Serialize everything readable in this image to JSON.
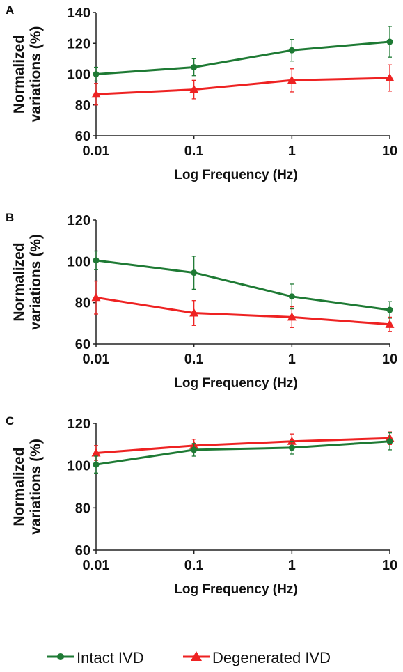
{
  "chart_data": [
    {
      "type": "line",
      "panel_label": "A",
      "x": [
        0.01,
        0.1,
        1,
        10
      ],
      "xticks": [
        "0.01",
        "0.1",
        "1",
        "10"
      ],
      "xscale": "log",
      "xlabel": "Log Frequency (Hz)",
      "ylabel": [
        "Normalized",
        "variations (%)"
      ],
      "ylim": [
        60,
        140
      ],
      "yticks": [
        60,
        80,
        100,
        120,
        140
      ],
      "grid": false,
      "series": [
        {
          "name": "Intact IVD",
          "color": "#1e7a34",
          "marker": "circle",
          "values": [
            100,
            104.5,
            115.5,
            121
          ],
          "errors": [
            4.5,
            5.5,
            7,
            10
          ]
        },
        {
          "name": "Degenerated IVD",
          "color": "#ee2222",
          "marker": "triangle",
          "values": [
            87,
            90,
            96,
            97.5
          ],
          "errors": [
            7,
            6,
            7.5,
            8.5
          ]
        }
      ]
    },
    {
      "type": "line",
      "panel_label": "B",
      "x": [
        0.01,
        0.1,
        1,
        10
      ],
      "xticks": [
        "0.01",
        "0.1",
        "1",
        "10"
      ],
      "xscale": "log",
      "xlabel": "Log Frequency (Hz)",
      "ylabel": [
        "Normalized",
        "variations (%)"
      ],
      "ylim": [
        60,
        120
      ],
      "yticks": [
        60,
        80,
        100,
        120
      ],
      "grid": false,
      "series": [
        {
          "name": "Intact IVD",
          "color": "#1e7a34",
          "marker": "circle",
          "values": [
            100.5,
            94.5,
            83,
            76.5
          ],
          "errors": [
            4.5,
            8,
            6,
            4
          ]
        },
        {
          "name": "Degenerated IVD",
          "color": "#ee2222",
          "marker": "triangle",
          "values": [
            82.5,
            75,
            73,
            69.5
          ],
          "errors": [
            8,
            6,
            5,
            3.5
          ]
        }
      ]
    },
    {
      "type": "line",
      "panel_label": "C",
      "x": [
        0.01,
        0.1,
        1,
        10
      ],
      "xticks": [
        "0.01",
        "0.1",
        "1",
        "10"
      ],
      "xscale": "log",
      "xlabel": "Log Frequency (Hz)",
      "ylabel": [
        "Normalized",
        "variations (%)"
      ],
      "ylim": [
        60,
        120
      ],
      "yticks": [
        60,
        80,
        100,
        120
      ],
      "grid": false,
      "series": [
        {
          "name": "Intact IVD",
          "color": "#1e7a34",
          "marker": "circle",
          "values": [
            100.5,
            107.5,
            108.5,
            111.5
          ],
          "errors": [
            4,
            3,
            3,
            4
          ]
        },
        {
          "name": "Degenerated IVD",
          "color": "#ee2222",
          "marker": "triangle",
          "values": [
            106,
            109.5,
            111.5,
            113
          ],
          "errors": [
            3.5,
            3,
            3.5,
            3
          ]
        }
      ]
    }
  ],
  "legend": {
    "position": "bottom",
    "items": [
      {
        "name": "Intact IVD",
        "color": "#1e7a34",
        "marker": "circle"
      },
      {
        "name": "Degenerated IVD",
        "color": "#ee2222",
        "marker": "triangle"
      }
    ]
  }
}
